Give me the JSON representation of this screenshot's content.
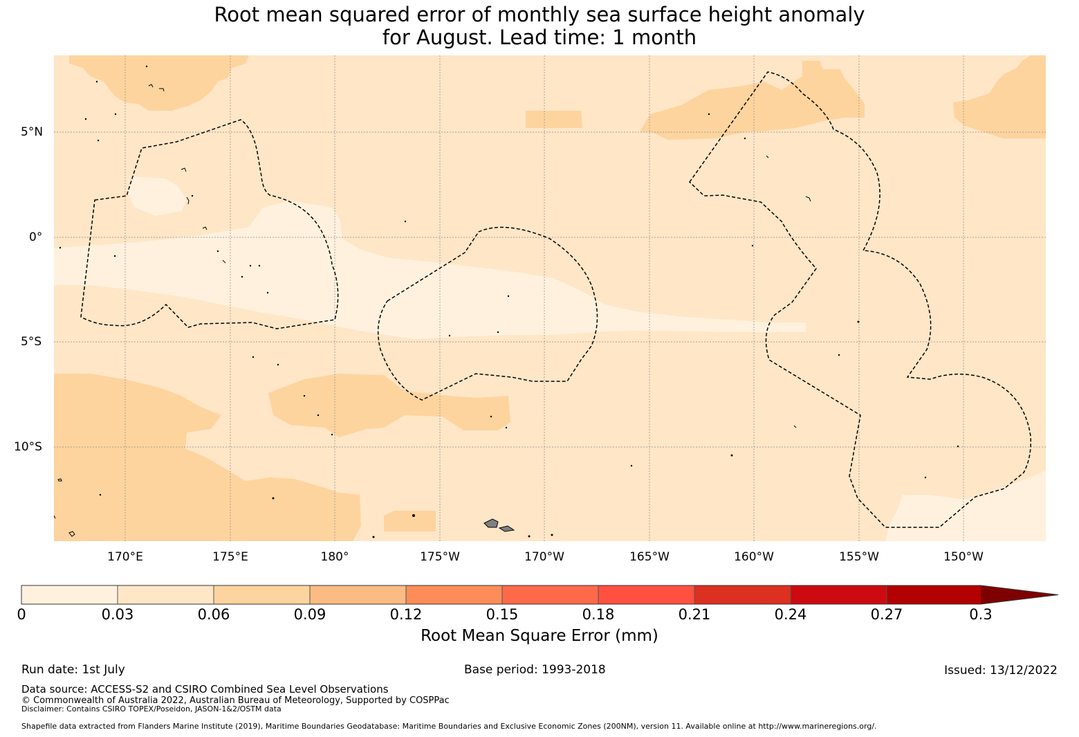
{
  "title": {
    "line1": "Root mean squared error of monthly sea surface height anomaly",
    "line2": "for August. Lead time: 1 month"
  },
  "map": {
    "lat_labels": [
      "5°N",
      "0°",
      "5°S",
      "10°S"
    ],
    "lon_labels": [
      "170°E",
      "175°E",
      "180°",
      "175°W",
      "170°W",
      "165°W",
      "160°W",
      "155°W",
      "150°W"
    ],
    "shading_colors": {
      "band_0_0.03": "#fff1de",
      "band_0.03_0.06": "#fee6c7",
      "band_0.06_0.09": "#fdd49e"
    },
    "land_color": "#808080"
  },
  "colorbar": {
    "ticks": [
      "0",
      "0.03",
      "0.06",
      "0.09",
      "0.12",
      "0.15",
      "0.18",
      "0.21",
      "0.24",
      "0.27",
      "0.3"
    ],
    "colors": [
      "#fff1de",
      "#fee6c7",
      "#fdd49e",
      "#fdbb84",
      "#fc8d59",
      "#fd6a4a",
      "#ff5040",
      "#dd3020",
      "#cc0a10",
      "#b30000"
    ],
    "extend_color": "#7f0000",
    "label": "Root Mean Square Error (mm)"
  },
  "footer": {
    "run_date": "Run date: 1st July",
    "base_period": "Base period: 1993-2018",
    "issued": "Issued: 13/12/2022",
    "data_source": "Data source: ACCESS-S2 and CSIRO Combined Sea Level Observations",
    "copyright": "© Commonwealth of Australia 2022, Australian Bureau of Meteorology, Supported by COSPPac",
    "disclaimer": "Disclaimer: Contains CSIRO TOPEX/Poseidon, JASON-1&2/OSTM data",
    "shapefile": "Shapefile data extracted from Flanders Marine Institute (2019), Maritime Boundaries Geodatabase: Maritime Boundaries and Exclusive Economic Zones (200NM), version 11. Available online at http://www.marineregions.org/."
  }
}
